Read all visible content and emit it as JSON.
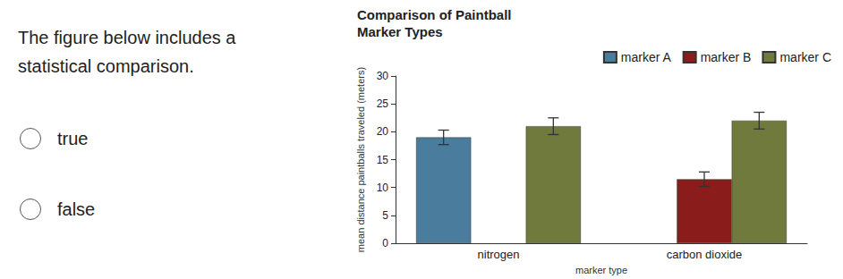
{
  "question": "The figure below includes a statistical comparison.",
  "options": [
    "true",
    "false"
  ],
  "chart_data": {
    "type": "bar",
    "title": "Comparison of Paintball Marker Types",
    "x_label": "marker type",
    "y_label": "mean distance paintballs traveled (meters)",
    "categories": [
      "nitrogen",
      "carbon dioxide"
    ],
    "series": [
      {
        "name": "marker A",
        "color": "#4a7c9e",
        "values": [
          19,
          null
        ],
        "errors": [
          1.3,
          null
        ]
      },
      {
        "name": "marker B",
        "color": "#8b1c1c",
        "values": [
          null,
          11.5
        ],
        "errors": [
          null,
          1.3
        ]
      },
      {
        "name": "marker C",
        "color": "#6f7a3c",
        "values": [
          21,
          22
        ],
        "errors": [
          1.5,
          1.5
        ]
      }
    ],
    "ylim": [
      0,
      30
    ],
    "yticks": [
      0,
      5,
      10,
      15,
      20,
      25,
      30
    ],
    "grid": false,
    "legend": "top-right"
  }
}
